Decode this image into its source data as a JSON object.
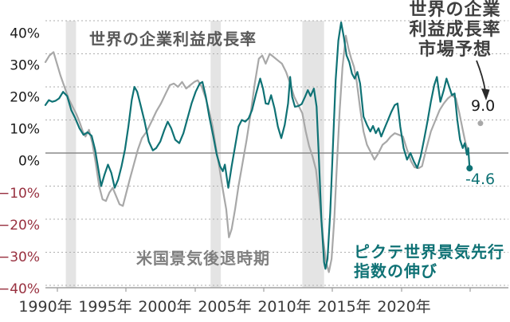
{
  "chart_data": {
    "type": "line",
    "title": "世界の企業利益成長率",
    "x_axis": {
      "tick_labels": [
        "1990年",
        "1995年",
        "2000年",
        "2005年",
        "2010年",
        "2015年",
        "2020年"
      ],
      "range_years": [
        1989,
        2023
      ],
      "label_color": "#3a3a3a"
    },
    "y_axis": {
      "unit": "%",
      "tick_labels": [
        "40%",
        "30%",
        "20%",
        "10%",
        "0%",
        "−10%",
        "−20%",
        "−30%",
        "−40%"
      ],
      "tick_values": [
        40,
        30,
        20,
        10,
        0,
        -10,
        -20,
        -30,
        -40
      ],
      "ylim": [
        -40,
        45
      ],
      "positive_label_color": "#1a1a1a",
      "negative_label_color": "#98303f"
    },
    "grid": {
      "show": true,
      "color": "#aeaeae",
      "zero_line_color": "#8a8a8a",
      "axis_line_color": "#a0a0a0"
    },
    "recession_bands": {
      "label": "米国景気後退時期",
      "label_color": "#7f7f7f",
      "fill": "#e4e4e4",
      "ranges": [
        [
          1990.5,
          1991.25
        ],
        [
          2001.15,
          2001.9
        ],
        [
          2007.9,
          2009.5
        ]
      ]
    },
    "series": [
      {
        "name": "世界の企業利益成長率",
        "color": "#a8a8a8",
        "points": [
          [
            1989.0,
            27.5
          ],
          [
            1989.3,
            29.5
          ],
          [
            1989.6,
            30.5
          ],
          [
            1989.85,
            27
          ],
          [
            1990.1,
            23.5
          ],
          [
            1990.4,
            20
          ],
          [
            1990.7,
            16.5
          ],
          [
            1991.0,
            14
          ],
          [
            1991.25,
            12
          ],
          [
            1991.5,
            9.5
          ],
          [
            1991.75,
            6.5
          ],
          [
            1991.95,
            5
          ],
          [
            1992.2,
            7
          ],
          [
            1992.45,
            3
          ],
          [
            1992.7,
            -3
          ],
          [
            1992.95,
            -10
          ],
          [
            1993.2,
            -14
          ],
          [
            1993.45,
            -14.5
          ],
          [
            1993.7,
            -12
          ],
          [
            1993.95,
            -10.5
          ],
          [
            1994.2,
            -13
          ],
          [
            1994.45,
            -15.5
          ],
          [
            1994.7,
            -16
          ],
          [
            1994.95,
            -12
          ],
          [
            1995.2,
            -8
          ],
          [
            1995.5,
            -3.5
          ],
          [
            1995.8,
            1
          ],
          [
            1996.1,
            4.5
          ],
          [
            1996.45,
            6.5
          ],
          [
            1996.8,
            9.5
          ],
          [
            1997.15,
            12.5
          ],
          [
            1997.5,
            15
          ],
          [
            1997.85,
            18
          ],
          [
            1998.15,
            20.5
          ],
          [
            1998.45,
            21
          ],
          [
            1998.75,
            20
          ],
          [
            1999.05,
            21.5
          ],
          [
            1999.35,
            19.5
          ],
          [
            1999.65,
            20.5
          ],
          [
            1999.95,
            21.5
          ],
          [
            2000.2,
            22
          ],
          [
            2000.5,
            20
          ],
          [
            2000.8,
            16.5
          ],
          [
            2001.05,
            12.5
          ],
          [
            2001.3,
            8
          ],
          [
            2001.55,
            1.5
          ],
          [
            2001.8,
            -4.5
          ],
          [
            2002.05,
            -11
          ],
          [
            2002.3,
            -17
          ],
          [
            2002.5,
            -25.5
          ],
          [
            2002.7,
            -23
          ],
          [
            2002.95,
            -17
          ],
          [
            2003.2,
            -10
          ],
          [
            2003.5,
            -3
          ],
          [
            2003.8,
            4
          ],
          [
            2004.1,
            12
          ],
          [
            2004.4,
            21
          ],
          [
            2004.7,
            28.5
          ],
          [
            2004.95,
            29.5
          ],
          [
            2005.2,
            27
          ],
          [
            2005.5,
            30
          ],
          [
            2005.8,
            29
          ],
          [
            2006.1,
            28
          ],
          [
            2006.4,
            27
          ],
          [
            2006.7,
            24.5
          ],
          [
            2007.0,
            21
          ],
          [
            2007.3,
            17
          ],
          [
            2007.6,
            14.5
          ],
          [
            2007.9,
            12
          ],
          [
            2008.15,
            6.5
          ],
          [
            2008.4,
            2
          ],
          [
            2008.65,
            -1
          ],
          [
            2008.9,
            -5
          ],
          [
            2009.15,
            -14
          ],
          [
            2009.4,
            -25
          ],
          [
            2009.65,
            -33
          ],
          [
            2009.85,
            -36
          ],
          [
            2010.05,
            -32
          ],
          [
            2010.25,
            -20
          ],
          [
            2010.45,
            -3
          ],
          [
            2010.65,
            13
          ],
          [
            2010.85,
            26
          ],
          [
            2011.1,
            35.5
          ],
          [
            2011.3,
            31.5
          ],
          [
            2011.5,
            28.5
          ],
          [
            2011.7,
            26
          ],
          [
            2011.9,
            21.5
          ],
          [
            2012.15,
            13.5
          ],
          [
            2012.4,
            6.5
          ],
          [
            2012.65,
            2.5
          ],
          [
            2012.9,
            0.5
          ],
          [
            2013.2,
            -2
          ],
          [
            2013.5,
            0
          ],
          [
            2013.8,
            2.5
          ],
          [
            2014.1,
            3.5
          ],
          [
            2014.4,
            5
          ],
          [
            2014.7,
            6
          ],
          [
            2015.0,
            5.5
          ],
          [
            2015.3,
            5
          ],
          [
            2015.6,
            1
          ],
          [
            2015.9,
            -2.5
          ],
          [
            2016.15,
            -4.3
          ],
          [
            2016.45,
            -4.6
          ],
          [
            2016.7,
            -4
          ],
          [
            2017.0,
            1
          ],
          [
            2017.35,
            6.5
          ],
          [
            2017.7,
            10
          ],
          [
            2018.0,
            13
          ],
          [
            2018.3,
            15
          ],
          [
            2018.6,
            16.5
          ],
          [
            2018.9,
            17.5
          ],
          [
            2019.2,
            16.5
          ],
          [
            2019.45,
            12
          ],
          [
            2019.7,
            7
          ],
          [
            2019.9,
            3
          ],
          [
            2020.1,
            0.5
          ]
        ]
      },
      {
        "name": "ピクテ世界景気先行指数の伸び",
        "color": "#0f7275",
        "points": [
          [
            1989.0,
            14.5
          ],
          [
            1989.25,
            16
          ],
          [
            1989.5,
            15.5
          ],
          [
            1989.75,
            15.8
          ],
          [
            1990.0,
            16.5
          ],
          [
            1990.3,
            18.5
          ],
          [
            1990.6,
            17.2
          ],
          [
            1990.9,
            13
          ],
          [
            1991.2,
            10.5
          ],
          [
            1991.5,
            7.5
          ],
          [
            1991.8,
            5.5
          ],
          [
            1992.1,
            6.3
          ],
          [
            1992.4,
            5.2
          ],
          [
            1992.65,
            1
          ],
          [
            1992.9,
            -5
          ],
          [
            1993.1,
            -10
          ],
          [
            1993.35,
            -6.5
          ],
          [
            1993.6,
            -3.5
          ],
          [
            1993.85,
            -6
          ],
          [
            1994.1,
            -10.5
          ],
          [
            1994.35,
            -8
          ],
          [
            1994.6,
            -4
          ],
          [
            1994.85,
            1
          ],
          [
            1995.1,
            8
          ],
          [
            1995.35,
            16
          ],
          [
            1995.55,
            20
          ],
          [
            1995.75,
            18.5
          ],
          [
            1996.0,
            14.5
          ],
          [
            1996.3,
            9.5
          ],
          [
            1996.6,
            3.5
          ],
          [
            1996.9,
            0.8
          ],
          [
            1997.15,
            1.5
          ],
          [
            1997.45,
            3.5
          ],
          [
            1997.75,
            7
          ],
          [
            1998.0,
            9.5
          ],
          [
            1998.25,
            7.5
          ],
          [
            1998.55,
            4
          ],
          [
            1998.85,
            3
          ],
          [
            1999.15,
            6
          ],
          [
            1999.45,
            10.5
          ],
          [
            1999.75,
            15
          ],
          [
            2000.05,
            18.5
          ],
          [
            2000.35,
            21
          ],
          [
            2000.55,
            21.5
          ],
          [
            2000.8,
            17
          ],
          [
            2001.05,
            11
          ],
          [
            2001.35,
            5
          ],
          [
            2001.6,
            -0.5
          ],
          [
            2001.85,
            -4
          ],
          [
            2002.05,
            -5.5
          ],
          [
            2002.2,
            -3.5
          ],
          [
            2002.45,
            -10.5
          ],
          [
            2002.7,
            -4
          ],
          [
            2002.95,
            2
          ],
          [
            2003.2,
            8
          ],
          [
            2003.45,
            10
          ],
          [
            2003.7,
            9.5
          ],
          [
            2003.95,
            10.5
          ],
          [
            2004.2,
            13
          ],
          [
            2004.5,
            18
          ],
          [
            2004.8,
            22.5
          ],
          [
            2005.0,
            19.5
          ],
          [
            2005.2,
            15
          ],
          [
            2005.4,
            14.8
          ],
          [
            2005.6,
            17.5
          ],
          [
            2005.85,
            13.5
          ],
          [
            2006.1,
            8
          ],
          [
            2006.35,
            4.5
          ],
          [
            2006.6,
            8.5
          ],
          [
            2006.85,
            15
          ],
          [
            2007.0,
            23
          ],
          [
            2007.15,
            17
          ],
          [
            2007.35,
            14
          ],
          [
            2007.6,
            14.2
          ],
          [
            2007.85,
            14.8
          ],
          [
            2008.1,
            17
          ],
          [
            2008.3,
            19
          ],
          [
            2008.5,
            17.2
          ],
          [
            2008.75,
            19.5
          ],
          [
            2008.95,
            14
          ],
          [
            2009.1,
            0
          ],
          [
            2009.3,
            -20
          ],
          [
            2009.5,
            -33
          ],
          [
            2009.6,
            -35
          ],
          [
            2009.75,
            -32
          ],
          [
            2009.95,
            -18
          ],
          [
            2010.15,
            2
          ],
          [
            2010.35,
            22
          ],
          [
            2010.55,
            34
          ],
          [
            2010.75,
            39.5
          ],
          [
            2010.95,
            35
          ],
          [
            2011.15,
            29.5
          ],
          [
            2011.35,
            27.5
          ],
          [
            2011.55,
            24
          ],
          [
            2011.75,
            22.5
          ],
          [
            2011.95,
            24.5
          ],
          [
            2012.15,
            21
          ],
          [
            2012.4,
            11
          ],
          [
            2012.65,
            8.5
          ],
          [
            2012.9,
            6.5
          ],
          [
            2013.1,
            8.2
          ],
          [
            2013.3,
            6
          ],
          [
            2013.5,
            7.5
          ],
          [
            2013.7,
            5
          ],
          [
            2013.95,
            7.5
          ],
          [
            2014.2,
            10
          ],
          [
            2014.45,
            12.5
          ],
          [
            2014.7,
            14.5
          ],
          [
            2014.9,
            15
          ],
          [
            2015.1,
            8
          ],
          [
            2015.35,
            1.5
          ],
          [
            2015.6,
            -2
          ],
          [
            2015.85,
            0
          ],
          [
            2016.1,
            -2.5
          ],
          [
            2016.35,
            -4.5
          ],
          [
            2016.6,
            -1
          ],
          [
            2016.85,
            4
          ],
          [
            2017.1,
            9.5
          ],
          [
            2017.35,
            15.5
          ],
          [
            2017.6,
            20.5
          ],
          [
            2017.8,
            23
          ],
          [
            2018.05,
            15.5
          ],
          [
            2018.3,
            19
          ],
          [
            2018.5,
            22.5
          ],
          [
            2018.7,
            20
          ],
          [
            2018.9,
            17.5
          ],
          [
            2019.1,
            18
          ],
          [
            2019.3,
            10
          ],
          [
            2019.5,
            4
          ],
          [
            2019.7,
            1.5
          ],
          [
            2019.85,
            3
          ],
          [
            2020.0,
            -0.5
          ],
          [
            2020.1,
            1.5
          ],
          [
            2020.2,
            -4.6
          ]
        ]
      }
    ],
    "end_markers": [
      {
        "series": "ピクテ世界景気先行指数の伸び",
        "year": 2020.2,
        "value": -4.6,
        "label": "-4.6",
        "dot_color": "#0f7275",
        "label_color": "#0f7275"
      },
      {
        "series": "世界の企業利益成長率市場予想",
        "year": 2021.0,
        "value": 9.0,
        "label": "9.0",
        "dot_color": "#a8a8a8",
        "label_color": "#1a1a1a"
      }
    ],
    "annotations": {
      "profit_series_label": {
        "text": "世界の企業利益成長率",
        "color": "#595959"
      },
      "forecast_label": {
        "lines": [
          "世界の企業",
          "利益成長率",
          "市場予想"
        ],
        "color": "#3f3f3f",
        "arrow_color": "#2a2a2a"
      },
      "recession_label": {
        "text": "米国景気後退時期",
        "color": "#7f7f7f"
      },
      "leading_index_label": {
        "lines": [
          "ピクテ世界景気先行",
          "指数の伸び"
        ],
        "color": "#0f7275"
      }
    },
    "legend_position": "annotated-inline"
  }
}
